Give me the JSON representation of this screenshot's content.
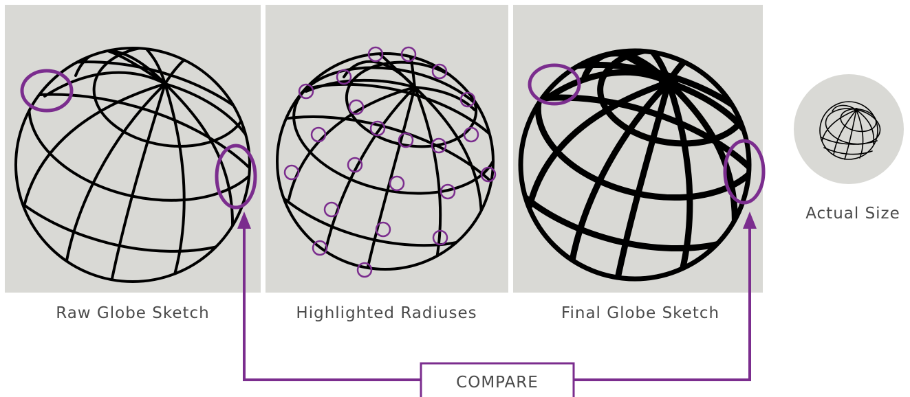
{
  "colors": {
    "panel_bg": "#d9d9d5",
    "stroke": "#000000",
    "accent": "#7b2d8e",
    "caption": "#4a4a4a"
  },
  "panels": [
    {
      "caption": "Raw Globe Sketch"
    },
    {
      "caption": "Highlighted Radiuses"
    },
    {
      "caption": "Final Globe Sketch"
    }
  ],
  "actual_size": {
    "caption": "Actual Size"
  },
  "compare": {
    "label": "COMPARE"
  }
}
